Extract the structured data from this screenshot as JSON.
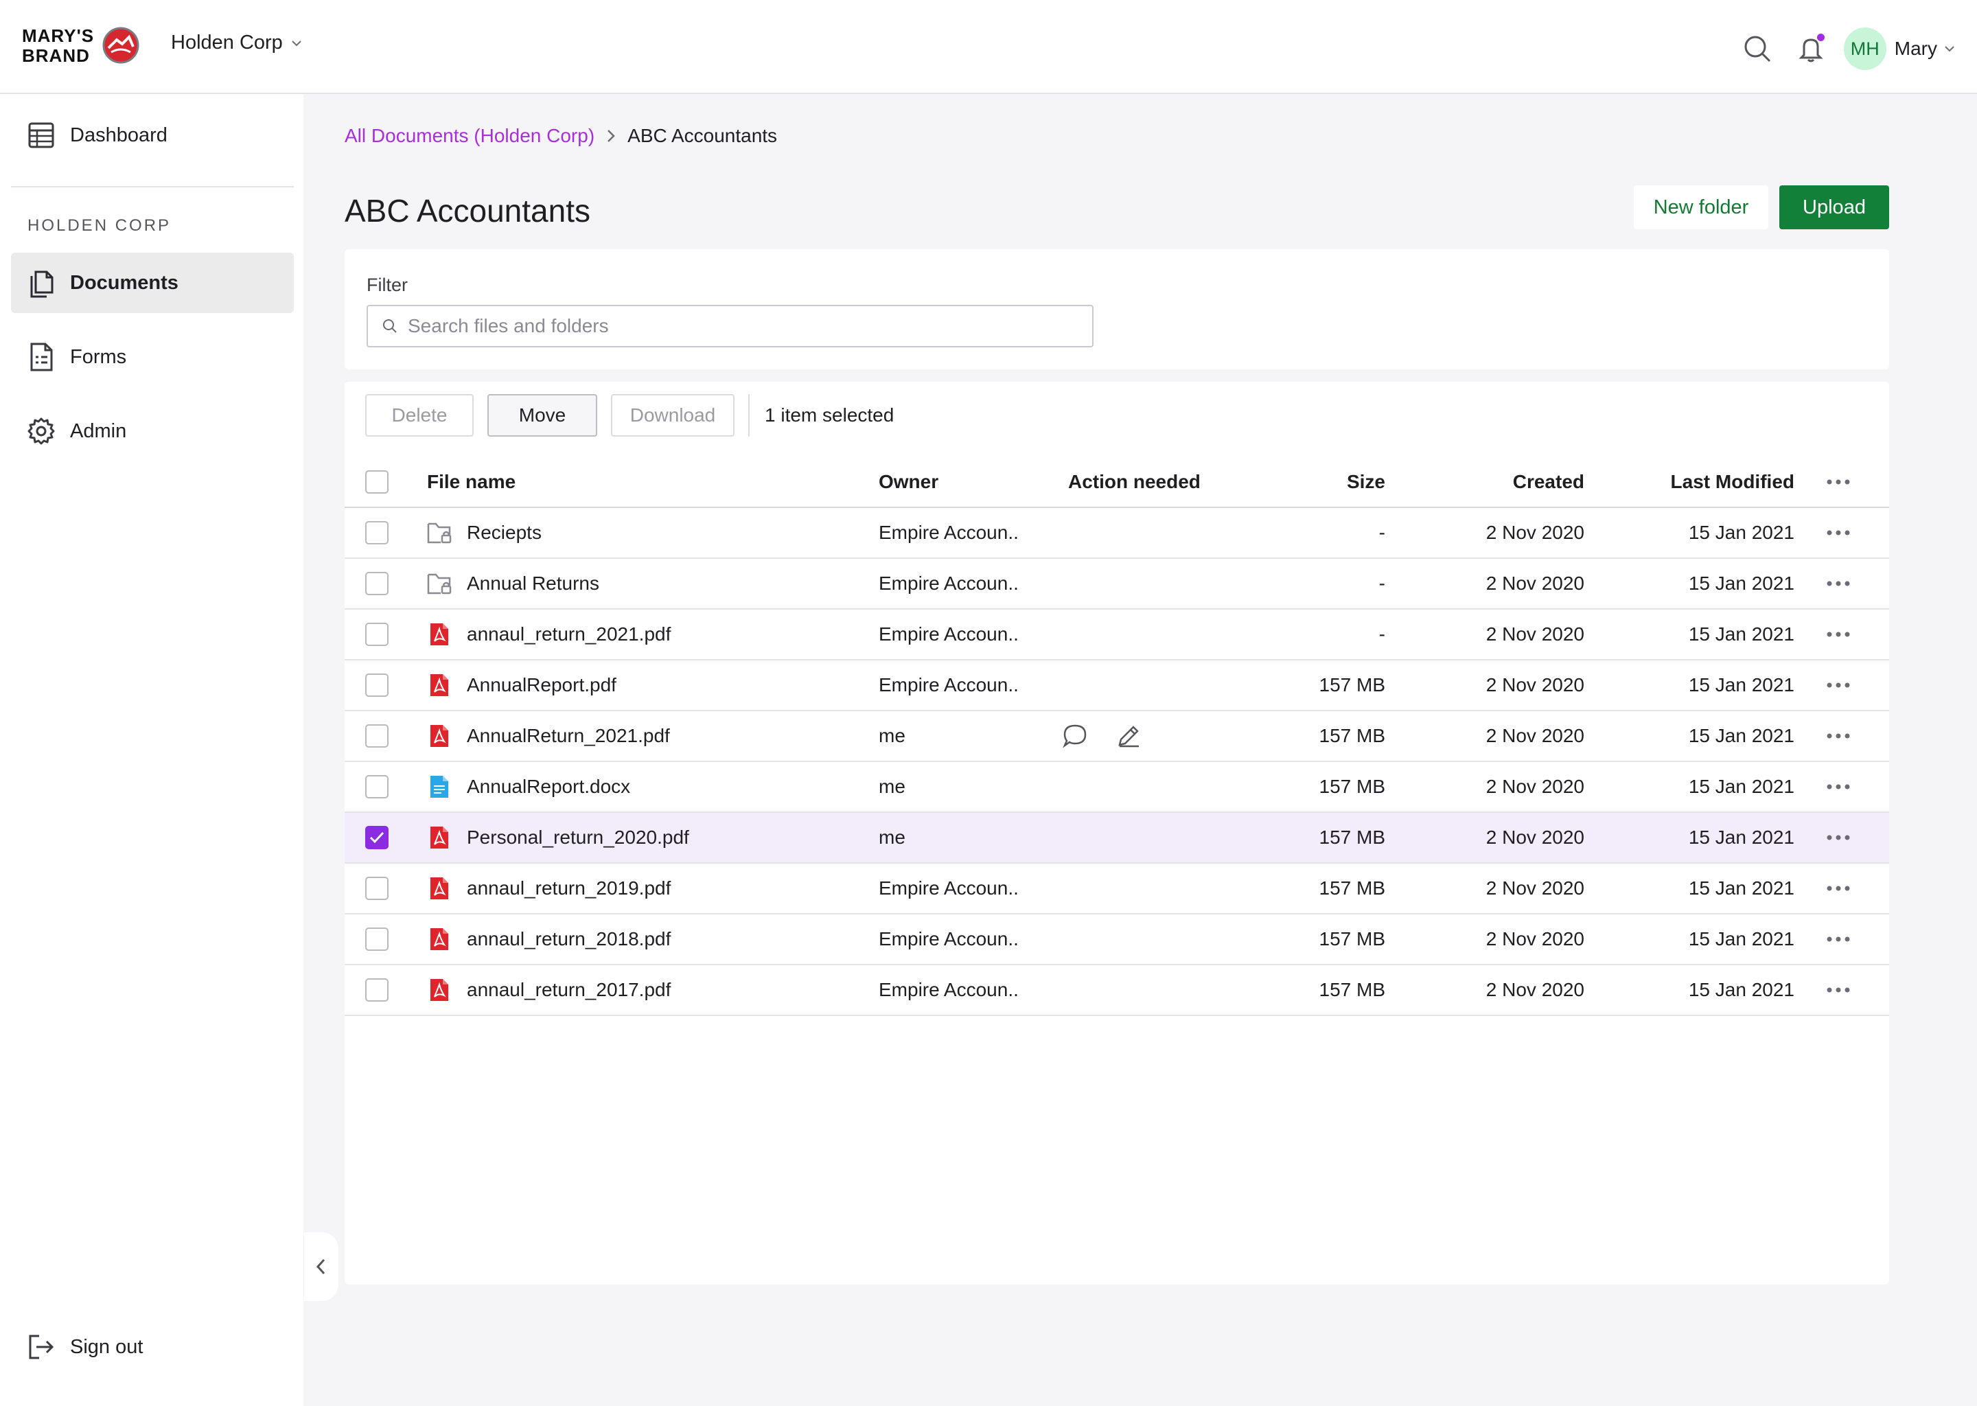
{
  "brand": {
    "line1": "MARY'S",
    "line2": "BRAND",
    "accent_color": "#d6262e"
  },
  "header": {
    "org_name": "Holden Corp",
    "user_initials": "MH",
    "user_name": "Mary",
    "notification_dot_color": "#a02ee5"
  },
  "sidebar": {
    "top_item": {
      "label": "Dashboard",
      "icon": "table-icon"
    },
    "section_heading": "HOLDEN CORP",
    "items": [
      {
        "label": "Documents",
        "icon": "documents-icon",
        "active": true
      },
      {
        "label": "Forms",
        "icon": "form-icon",
        "active": false
      },
      {
        "label": "Admin",
        "icon": "gear-icon",
        "active": false
      }
    ],
    "signout_label": "Sign out"
  },
  "breadcrumb": {
    "root": "All Documents (Holden Corp)",
    "current": "ABC Accountants"
  },
  "page": {
    "title": "ABC Accountants",
    "new_folder_label": "New folder",
    "upload_label": "Upload"
  },
  "filter": {
    "label": "Filter",
    "placeholder": "Search files and folders",
    "value": ""
  },
  "toolbar": {
    "delete_label": "Delete",
    "move_label": "Move",
    "download_label": "Download",
    "selection_text": "1 item selected"
  },
  "table": {
    "columns": {
      "name": "File name",
      "owner": "Owner",
      "action": "Action needed",
      "size": "Size",
      "created": "Created",
      "modified": "Last Modified"
    },
    "rows": [
      {
        "type": "folder",
        "name": "Reciepts",
        "owner": "Empire Accoun..",
        "action": false,
        "size": "-",
        "created": "2 Nov 2020",
        "modified": "15 Jan 2021",
        "checked": false
      },
      {
        "type": "folder",
        "name": "Annual Returns",
        "owner": "Empire Accoun..",
        "action": false,
        "size": "-",
        "created": "2 Nov 2020",
        "modified": "15 Jan 2021",
        "checked": false
      },
      {
        "type": "pdf",
        "name": "annaul_return_2021.pdf",
        "owner": "Empire Accoun..",
        "action": false,
        "size": "-",
        "created": "2 Nov 2020",
        "modified": "15 Jan 2021",
        "checked": false
      },
      {
        "type": "pdf",
        "name": "AnnualReport.pdf",
        "owner": "Empire Accoun..",
        "action": false,
        "size": "157 MB",
        "created": "2 Nov 2020",
        "modified": "15 Jan 2021",
        "checked": false
      },
      {
        "type": "pdf",
        "name": "AnnualReturn_2021.pdf",
        "owner": "me",
        "action": true,
        "size": "157 MB",
        "created": "2 Nov 2020",
        "modified": "15 Jan 2021",
        "checked": false
      },
      {
        "type": "doc",
        "name": "AnnualReport.docx",
        "owner": "me",
        "action": false,
        "size": "157 MB",
        "created": "2 Nov 2020",
        "modified": "15 Jan 2021",
        "checked": false
      },
      {
        "type": "pdf",
        "name": "Personal_return_2020.pdf",
        "owner": "me",
        "action": false,
        "size": "157 MB",
        "created": "2 Nov 2020",
        "modified": "15 Jan 2021",
        "checked": true
      },
      {
        "type": "pdf",
        "name": "annaul_return_2019.pdf",
        "owner": "Empire Accoun..",
        "action": false,
        "size": "157 MB",
        "created": "2 Nov 2020",
        "modified": "15 Jan 2021",
        "checked": false
      },
      {
        "type": "pdf",
        "name": "annaul_return_2018.pdf",
        "owner": "Empire Accoun..",
        "action": false,
        "size": "157 MB",
        "created": "2 Nov 2020",
        "modified": "15 Jan 2021",
        "checked": false
      },
      {
        "type": "pdf",
        "name": "annaul_return_2017.pdf",
        "owner": "Empire Accoun..",
        "action": false,
        "size": "157 MB",
        "created": "2 Nov 2020",
        "modified": "15 Jan 2021",
        "checked": false
      }
    ]
  },
  "colors": {
    "primary_green": "#13803a",
    "link_purple": "#a62fd8",
    "checkbox_purple": "#8b2be2",
    "pdf_red": "#e0242b",
    "doc_blue": "#2aa7e8"
  }
}
